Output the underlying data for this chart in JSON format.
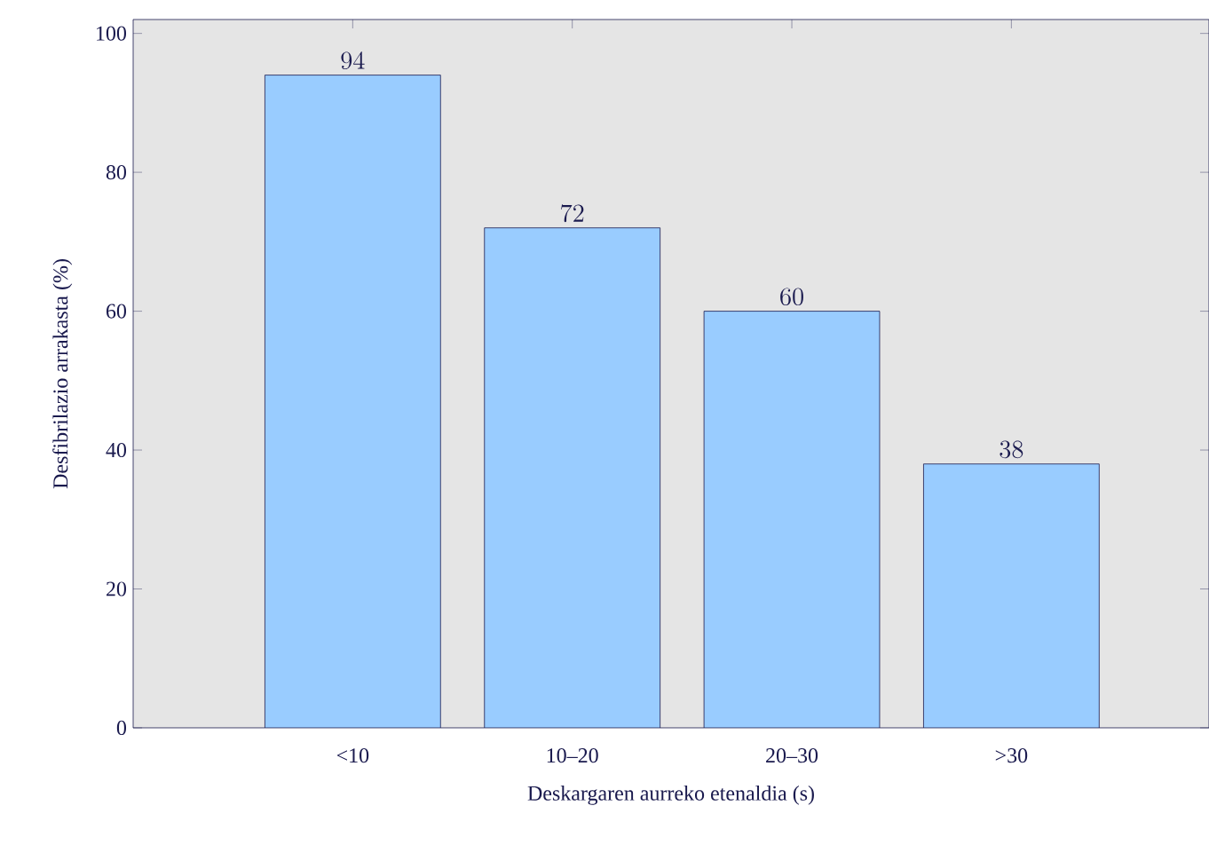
{
  "chart_data": {
    "type": "bar",
    "xlabel": "Deskargaren aurreko etenaldia (s)",
    "ylabel": "Desfibrilazio arrakasta (%)",
    "categories": [
      "<10",
      "10–20",
      "20–30",
      ">30"
    ],
    "values": [
      94,
      72,
      60,
      38
    ],
    "color": "#99ccff",
    "ylim": [
      0,
      102
    ],
    "yticks": [
      0,
      20,
      40,
      60,
      80,
      100
    ],
    "data_labels": true
  }
}
